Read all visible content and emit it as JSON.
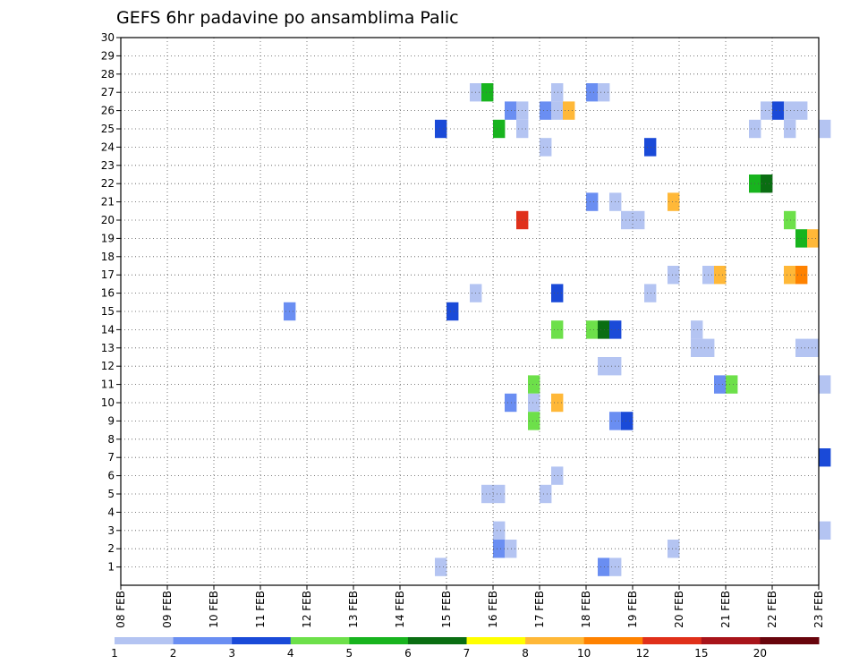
{
  "chart_data": {
    "type": "heatmap",
    "title": "GEFS 6hr padavine po ansamblima Palic",
    "x_start_day": 8,
    "x_end_day": 23,
    "x_tick_labels": [
      "08 FEB",
      "09 FEB",
      "10 FEB",
      "11 FEB",
      "12 FEB",
      "13 FEB",
      "14 FEB",
      "15 FEB",
      "16 FEB",
      "17 FEB",
      "18 FEB",
      "19 FEB",
      "20 FEB",
      "21 FEB",
      "22 FEB",
      "23 FEB"
    ],
    "y_range": [
      0,
      30
    ],
    "y_tick_labels": [
      "1",
      "2",
      "3",
      "4",
      "5",
      "6",
      "7",
      "8",
      "9",
      "10",
      "11",
      "12",
      "13",
      "14",
      "15",
      "16",
      "17",
      "18",
      "19",
      "20",
      "21",
      "22",
      "23",
      "24",
      "25",
      "26",
      "27",
      "28",
      "29",
      "30"
    ],
    "grid": true,
    "colorbar": {
      "labels": [
        "1",
        "2",
        "3",
        "4",
        "5",
        "6",
        "7",
        "8",
        "10",
        "12",
        "15",
        "20"
      ],
      "colors": [
        "#b4c4f2",
        "#6a8ef2",
        "#1a4ad8",
        "#6de04a",
        "#18b41e",
        "#0a6e12",
        "#ffff00",
        "#ffb838",
        "#ff8200",
        "#e0301a",
        "#a8141a",
        "#68040c"
      ]
    },
    "cells": [
      {
        "member": 27,
        "day": 15.5,
        "level": 1
      },
      {
        "member": 27,
        "day": 15.75,
        "level": 5
      },
      {
        "member": 27,
        "day": 17.25,
        "level": 1
      },
      {
        "member": 27,
        "day": 18.0,
        "level": 2
      },
      {
        "member": 27,
        "day": 18.25,
        "level": 1
      },
      {
        "member": 26,
        "day": 16.25,
        "level": 2
      },
      {
        "member": 26,
        "day": 16.5,
        "level": 1
      },
      {
        "member": 26,
        "day": 17.0,
        "level": 2
      },
      {
        "member": 26,
        "day": 17.25,
        "level": 1
      },
      {
        "member": 26,
        "day": 17.5,
        "level": 8
      },
      {
        "member": 26,
        "day": 21.75,
        "level": 1
      },
      {
        "member": 26,
        "day": 22.0,
        "level": 3
      },
      {
        "member": 26,
        "day": 22.25,
        "level": 1
      },
      {
        "member": 26,
        "day": 22.5,
        "level": 1
      },
      {
        "member": 25,
        "day": 14.75,
        "level": 3
      },
      {
        "member": 25,
        "day": 16.0,
        "level": 5
      },
      {
        "member": 25,
        "day": 16.5,
        "level": 1
      },
      {
        "member": 25,
        "day": 21.5,
        "level": 1
      },
      {
        "member": 25,
        "day": 22.25,
        "level": 1
      },
      {
        "member": 25,
        "day": 23.0,
        "level": 1
      },
      {
        "member": 24,
        "day": 17.0,
        "level": 1
      },
      {
        "member": 24,
        "day": 19.25,
        "level": 3
      },
      {
        "member": 22,
        "day": 21.5,
        "level": 5
      },
      {
        "member": 22,
        "day": 21.75,
        "level": 6
      },
      {
        "member": 21,
        "day": 18.0,
        "level": 2
      },
      {
        "member": 21,
        "day": 18.5,
        "level": 1
      },
      {
        "member": 21,
        "day": 19.75,
        "level": 8
      },
      {
        "member": 20,
        "day": 16.5,
        "level": 10
      },
      {
        "member": 20,
        "day": 18.75,
        "level": 1
      },
      {
        "member": 20,
        "day": 19.0,
        "level": 1
      },
      {
        "member": 20,
        "day": 22.25,
        "level": 4
      },
      {
        "member": 19,
        "day": 22.5,
        "level": 5
      },
      {
        "member": 19,
        "day": 22.75,
        "level": 8
      },
      {
        "member": 17,
        "day": 19.75,
        "level": 1
      },
      {
        "member": 17,
        "day": 20.5,
        "level": 1
      },
      {
        "member": 17,
        "day": 20.75,
        "level": 8
      },
      {
        "member": 17,
        "day": 22.25,
        "level": 8
      },
      {
        "member": 17,
        "day": 22.5,
        "level": 9
      },
      {
        "member": 16,
        "day": 15.5,
        "level": 1
      },
      {
        "member": 16,
        "day": 17.25,
        "level": 3
      },
      {
        "member": 16,
        "day": 19.25,
        "level": 1
      },
      {
        "member": 15,
        "day": 11.5,
        "level": 2
      },
      {
        "member": 15,
        "day": 15.0,
        "level": 3
      },
      {
        "member": 14,
        "day": 17.25,
        "level": 4
      },
      {
        "member": 14,
        "day": 18.0,
        "level": 4
      },
      {
        "member": 14,
        "day": 18.25,
        "level": 6
      },
      {
        "member": 14,
        "day": 18.5,
        "level": 3
      },
      {
        "member": 14,
        "day": 20.25,
        "level": 1
      },
      {
        "member": 13,
        "day": 20.25,
        "level": 1
      },
      {
        "member": 13,
        "day": 20.5,
        "level": 1
      },
      {
        "member": 13,
        "day": 22.5,
        "level": 1
      },
      {
        "member": 13,
        "day": 22.75,
        "level": 1
      },
      {
        "member": 12,
        "day": 18.25,
        "level": 1
      },
      {
        "member": 12,
        "day": 18.5,
        "level": 1
      },
      {
        "member": 11,
        "day": 16.75,
        "level": 4
      },
      {
        "member": 11,
        "day": 20.75,
        "level": 2
      },
      {
        "member": 11,
        "day": 21.0,
        "level": 4
      },
      {
        "member": 11,
        "day": 23.0,
        "level": 1
      },
      {
        "member": 10,
        "day": 16.25,
        "level": 2
      },
      {
        "member": 10,
        "day": 16.75,
        "level": 1
      },
      {
        "member": 10,
        "day": 17.25,
        "level": 8
      },
      {
        "member": 9,
        "day": 16.75,
        "level": 4
      },
      {
        "member": 9,
        "day": 18.5,
        "level": 2
      },
      {
        "member": 9,
        "day": 18.75,
        "level": 3
      },
      {
        "member": 7,
        "day": 23.0,
        "level": 3
      },
      {
        "member": 6,
        "day": 17.25,
        "level": 1
      },
      {
        "member": 5,
        "day": 15.75,
        "level": 1
      },
      {
        "member": 5,
        "day": 16.0,
        "level": 1
      },
      {
        "member": 5,
        "day": 17.0,
        "level": 1
      },
      {
        "member": 3,
        "day": 16.0,
        "level": 1
      },
      {
        "member": 3,
        "day": 23.0,
        "level": 1
      },
      {
        "member": 2,
        "day": 16.0,
        "level": 2
      },
      {
        "member": 2,
        "day": 16.25,
        "level": 1
      },
      {
        "member": 2,
        "day": 19.75,
        "level": 1
      },
      {
        "member": 1,
        "day": 14.75,
        "level": 1
      },
      {
        "member": 1,
        "day": 18.25,
        "level": 2
      },
      {
        "member": 1,
        "day": 18.5,
        "level": 1
      }
    ]
  }
}
